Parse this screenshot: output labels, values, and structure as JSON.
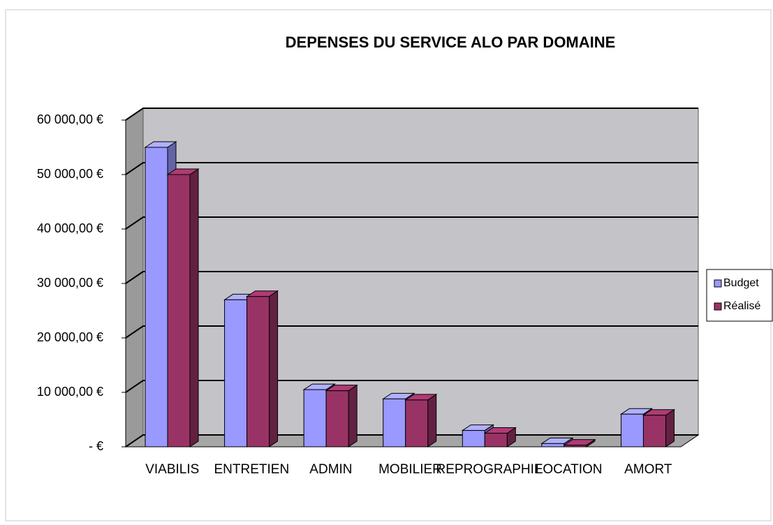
{
  "chart_data": {
    "type": "bar3d",
    "title": "DEPENSES DU SERVICE ALO PAR DOMAINE",
    "categories": [
      "VIABILIS",
      "ENTRETIEN",
      "ADMIN",
      "MOBILIER",
      "REPROGRAPHIE",
      "LOCATION",
      "AMORT"
    ],
    "series": [
      {
        "name": "Budget",
        "color": "#9999ff",
        "values": [
          55000,
          27000,
          10500,
          8800,
          3000,
          600,
          6000
        ]
      },
      {
        "name": "Réalisé",
        "color": "#993366",
        "values": [
          50000,
          27600,
          10300,
          8600,
          2500,
          300,
          5800
        ]
      }
    ],
    "ylim": [
      0,
      60000
    ],
    "yticks": [
      {
        "value": 0,
        "label": "-   €"
      },
      {
        "value": 10000,
        "label": "10 000,00 €"
      },
      {
        "value": 20000,
        "label": "20 000,00 €"
      },
      {
        "value": 30000,
        "label": "30 000,00 €"
      },
      {
        "value": 40000,
        "label": "40 000,00 €"
      },
      {
        "value": 50000,
        "label": "50 000,00 €"
      },
      {
        "value": 60000,
        "label": "60 000,00 €"
      }
    ],
    "grid": true,
    "legend": "right"
  }
}
